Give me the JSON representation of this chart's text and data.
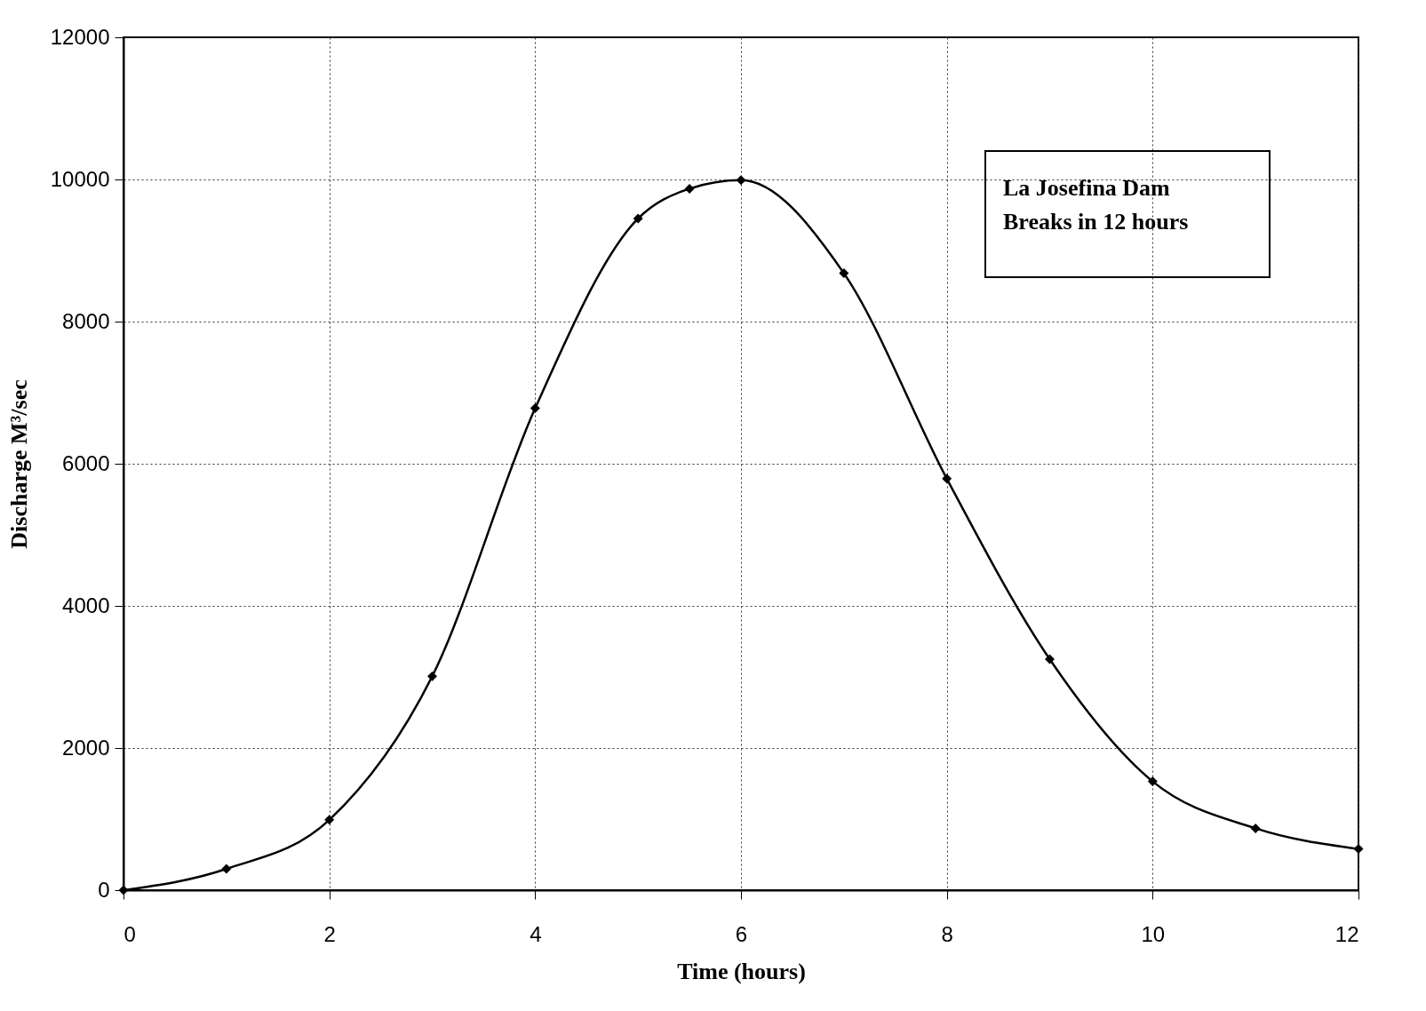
{
  "chart_data": {
    "type": "line",
    "xlabel": "Time (hours)",
    "ylabel": "Discharge M³/sec",
    "annotations": [
      "La Josefina Dam Breaks in 12 hours"
    ],
    "x": [
      0,
      1,
      2,
      3,
      4,
      5,
      5.5,
      6,
      7,
      8,
      9,
      10,
      11,
      12
    ],
    "series": [
      {
        "color": "#000000",
        "values": [
          0,
          300,
          990,
          3010,
          6780,
          9450,
          9870,
          9990,
          8680,
          5790,
          3250,
          1530,
          870,
          580
        ]
      }
    ],
    "xlim": [
      0,
      12
    ],
    "xticks": [
      0,
      2,
      4,
      6,
      8,
      10,
      12
    ],
    "ylim": [
      0,
      12000
    ],
    "yticks": [
      0,
      2000,
      4000,
      6000,
      8000,
      10000,
      12000
    ],
    "grid": true,
    "marker": "diamond",
    "line_style": "solid"
  }
}
